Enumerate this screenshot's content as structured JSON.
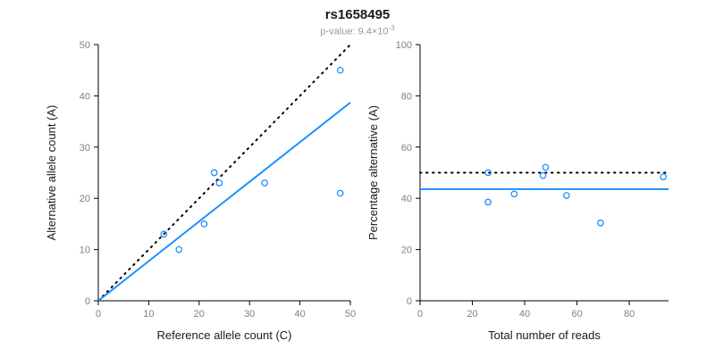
{
  "header": {
    "title": "rs1658495",
    "subtitle_prefix": "p-value: 9.4×10",
    "subtitle_exponent": "-3"
  },
  "colors": {
    "accent": "#1E90FF",
    "dotted_line": "#000000",
    "axis": "#000000",
    "tick_label": "#808080",
    "axis_label": "#1a1a1a",
    "subtitle": "#9a9a9a",
    "point_stroke": "#1E90FF"
  },
  "chart_data": [
    {
      "type": "scatter",
      "xlabel": "Reference allele count (C)",
      "ylabel": "Alternative allele count (A)",
      "xlim": [
        0,
        50
      ],
      "ylim": [
        0,
        50
      ],
      "xticks": [
        0,
        10,
        20,
        30,
        40,
        50
      ],
      "yticks": [
        0,
        10,
        20,
        30,
        40,
        50
      ],
      "grid": false,
      "points": [
        [
          13,
          13
        ],
        [
          16,
          10
        ],
        [
          21,
          15
        ],
        [
          23,
          25
        ],
        [
          24,
          23
        ],
        [
          33,
          23
        ],
        [
          48,
          45
        ],
        [
          48,
          21
        ]
      ],
      "lines": [
        {
          "style": "dotted",
          "x1": 0,
          "y1": 0,
          "x2": 50,
          "y2": 50
        },
        {
          "style": "solid",
          "x1": 0,
          "y1": 0,
          "x2": 50,
          "y2": 38.7
        }
      ]
    },
    {
      "type": "scatter",
      "xlabel": "Total number of reads",
      "ylabel": "Percentage alternative (A)",
      "xlim": [
        0,
        95
      ],
      "ylim": [
        0,
        100
      ],
      "xticks": [
        0,
        20,
        40,
        60,
        80
      ],
      "yticks": [
        0,
        20,
        40,
        60,
        80,
        100
      ],
      "grid": false,
      "points": [
        [
          26,
          50
        ],
        [
          26,
          38.5
        ],
        [
          36,
          41.7
        ],
        [
          48,
          52.1
        ],
        [
          47,
          48.9
        ],
        [
          56,
          41.1
        ],
        [
          69,
          30.4
        ],
        [
          93,
          48.4
        ]
      ],
      "lines": [
        {
          "style": "dotted",
          "x1": 0,
          "y1": 50,
          "x2": 95,
          "y2": 50
        },
        {
          "style": "solid",
          "x1": 0,
          "y1": 43.6,
          "x2": 95,
          "y2": 43.6
        }
      ]
    }
  ]
}
